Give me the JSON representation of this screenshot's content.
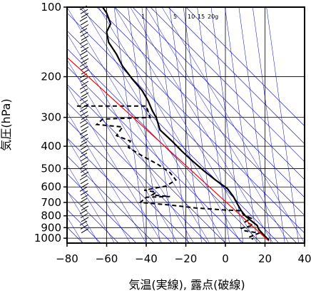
{
  "chart_data": {
    "type": "line",
    "xlabel": "気温(実線), 露点(破線)",
    "ylabel": "気圧(hPa)",
    "xlim": [
      -80,
      40
    ],
    "ylim": [
      100,
      1050
    ],
    "y_scale": "log",
    "x_ticks": [
      -80,
      -60,
      -40,
      -20,
      0,
      20,
      40
    ],
    "y_ticks": [
      100,
      200,
      300,
      400,
      500,
      600,
      700,
      800,
      900,
      1000
    ],
    "x_tick_labels": [
      "−80",
      "−60",
      "−40",
      "−20",
      "0",
      "20",
      "40"
    ],
    "y_tick_labels": [
      "100",
      "200",
      "300",
      "400",
      "500",
      "600",
      "700",
      "800",
      "900",
      "1000"
    ],
    "mixing_ratio_labels": [
      "1",
      "5",
      "10",
      "15",
      "20g"
    ],
    "grid": true,
    "series": [
      {
        "style": "solid",
        "points": [
          [
            -62,
            100
          ],
          [
            -60,
            106
          ],
          [
            -58,
            118
          ],
          [
            -60,
            128
          ],
          [
            -59,
            142
          ],
          [
            -55,
            160
          ],
          [
            -52,
            180
          ],
          [
            -47,
            205
          ],
          [
            -42,
            230
          ],
          [
            -39,
            255
          ],
          [
            -37,
            280
          ],
          [
            -35,
            300
          ],
          [
            -33,
            340
          ],
          [
            -27,
            380
          ],
          [
            -22,
            420
          ],
          [
            -17,
            460
          ],
          [
            -11,
            510
          ],
          [
            -5,
            560
          ],
          [
            1,
            610
          ],
          [
            4,
            660
          ],
          [
            6,
            710
          ],
          [
            8,
            760
          ],
          [
            10,
            800
          ],
          [
            13,
            840
          ],
          [
            16,
            880
          ],
          [
            17,
            920
          ],
          [
            19,
            960
          ],
          [
            21,
            1000
          ],
          [
            22,
            1020
          ]
        ]
      },
      {
        "style": "dashed",
        "points": [
          [
            -75,
            268
          ],
          [
            -40,
            268
          ],
          [
            -38,
            300
          ],
          [
            -62,
            305
          ],
          [
            -65,
            322
          ],
          [
            -52,
            330
          ],
          [
            -55,
            360
          ],
          [
            -48,
            380
          ],
          [
            -49,
            405
          ],
          [
            -42,
            440
          ],
          [
            -34,
            480
          ],
          [
            -28,
            520
          ],
          [
            -25,
            560
          ],
          [
            -30,
            595
          ],
          [
            -41,
            620
          ],
          [
            -35,
            632
          ],
          [
            -37,
            650
          ],
          [
            -28,
            660
          ],
          [
            -40,
            665
          ],
          [
            -43,
            700
          ],
          [
            -27,
            720
          ],
          [
            -15,
            740
          ],
          [
            0,
            755
          ],
          [
            8,
            760
          ],
          [
            9,
            790
          ],
          [
            13,
            820
          ],
          [
            10,
            850
          ],
          [
            14,
            880
          ],
          [
            8,
            905
          ],
          [
            10,
            930
          ],
          [
            17,
            950
          ],
          [
            12,
            990
          ],
          [
            14,
            1010
          ]
        ]
      },
      {
        "style": "solid-red",
        "points": [
          [
            -80,
            165
          ],
          [
            22,
            1030
          ]
        ]
      }
    ],
    "colors": {
      "temperature": "#000000",
      "dewpoint": "#000000",
      "parcel": "#ff0000",
      "isotherm_lines": "#0000cc",
      "frame": "#000000",
      "grid": "#000000",
      "wind_barbs": "#000000"
    }
  }
}
